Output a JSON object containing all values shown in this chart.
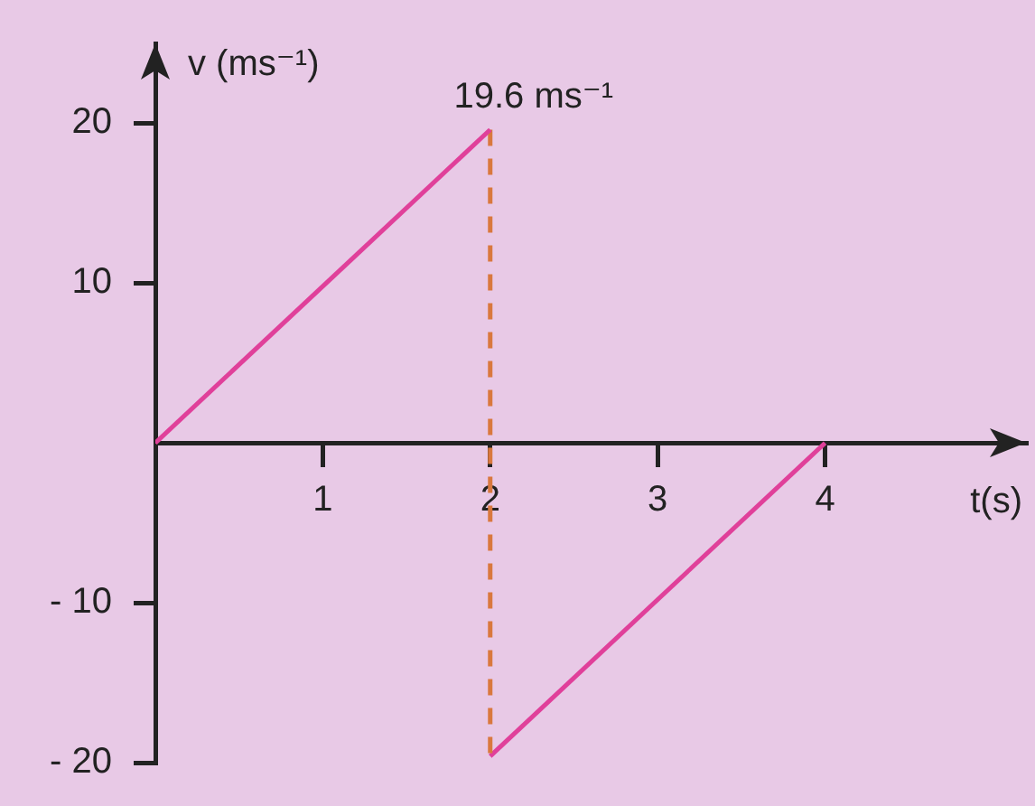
{
  "chart_data": {
    "type": "line",
    "xlabel": "t(s)",
    "ylabel": "v (ms⁻¹)",
    "xlim": [
      0,
      5.2
    ],
    "ylim": [
      -20,
      25
    ],
    "xticks": [
      1,
      2,
      3,
      4
    ],
    "yticks": [
      {
        "value": -20,
        "label": "- 20"
      },
      {
        "value": -10,
        "label": "- 10"
      },
      10,
      20
    ],
    "series": [
      {
        "color": "#e0409a",
        "x": [
          0,
          2
        ],
        "values": [
          0,
          19.6
        ]
      },
      {
        "color": "#d9783e",
        "x": [
          2,
          2
        ],
        "values": [
          19.6,
          -19.6
        ],
        "line_style": "dashed"
      },
      {
        "color": "#e0409a",
        "x": [
          2,
          4
        ],
        "values": [
          -19.6,
          0
        ]
      }
    ],
    "annotations": [
      {
        "text": "19.6 ms⁻¹",
        "x": 2,
        "y": 19.6
      }
    ],
    "marker": "none",
    "grid": false,
    "legend": false
  }
}
